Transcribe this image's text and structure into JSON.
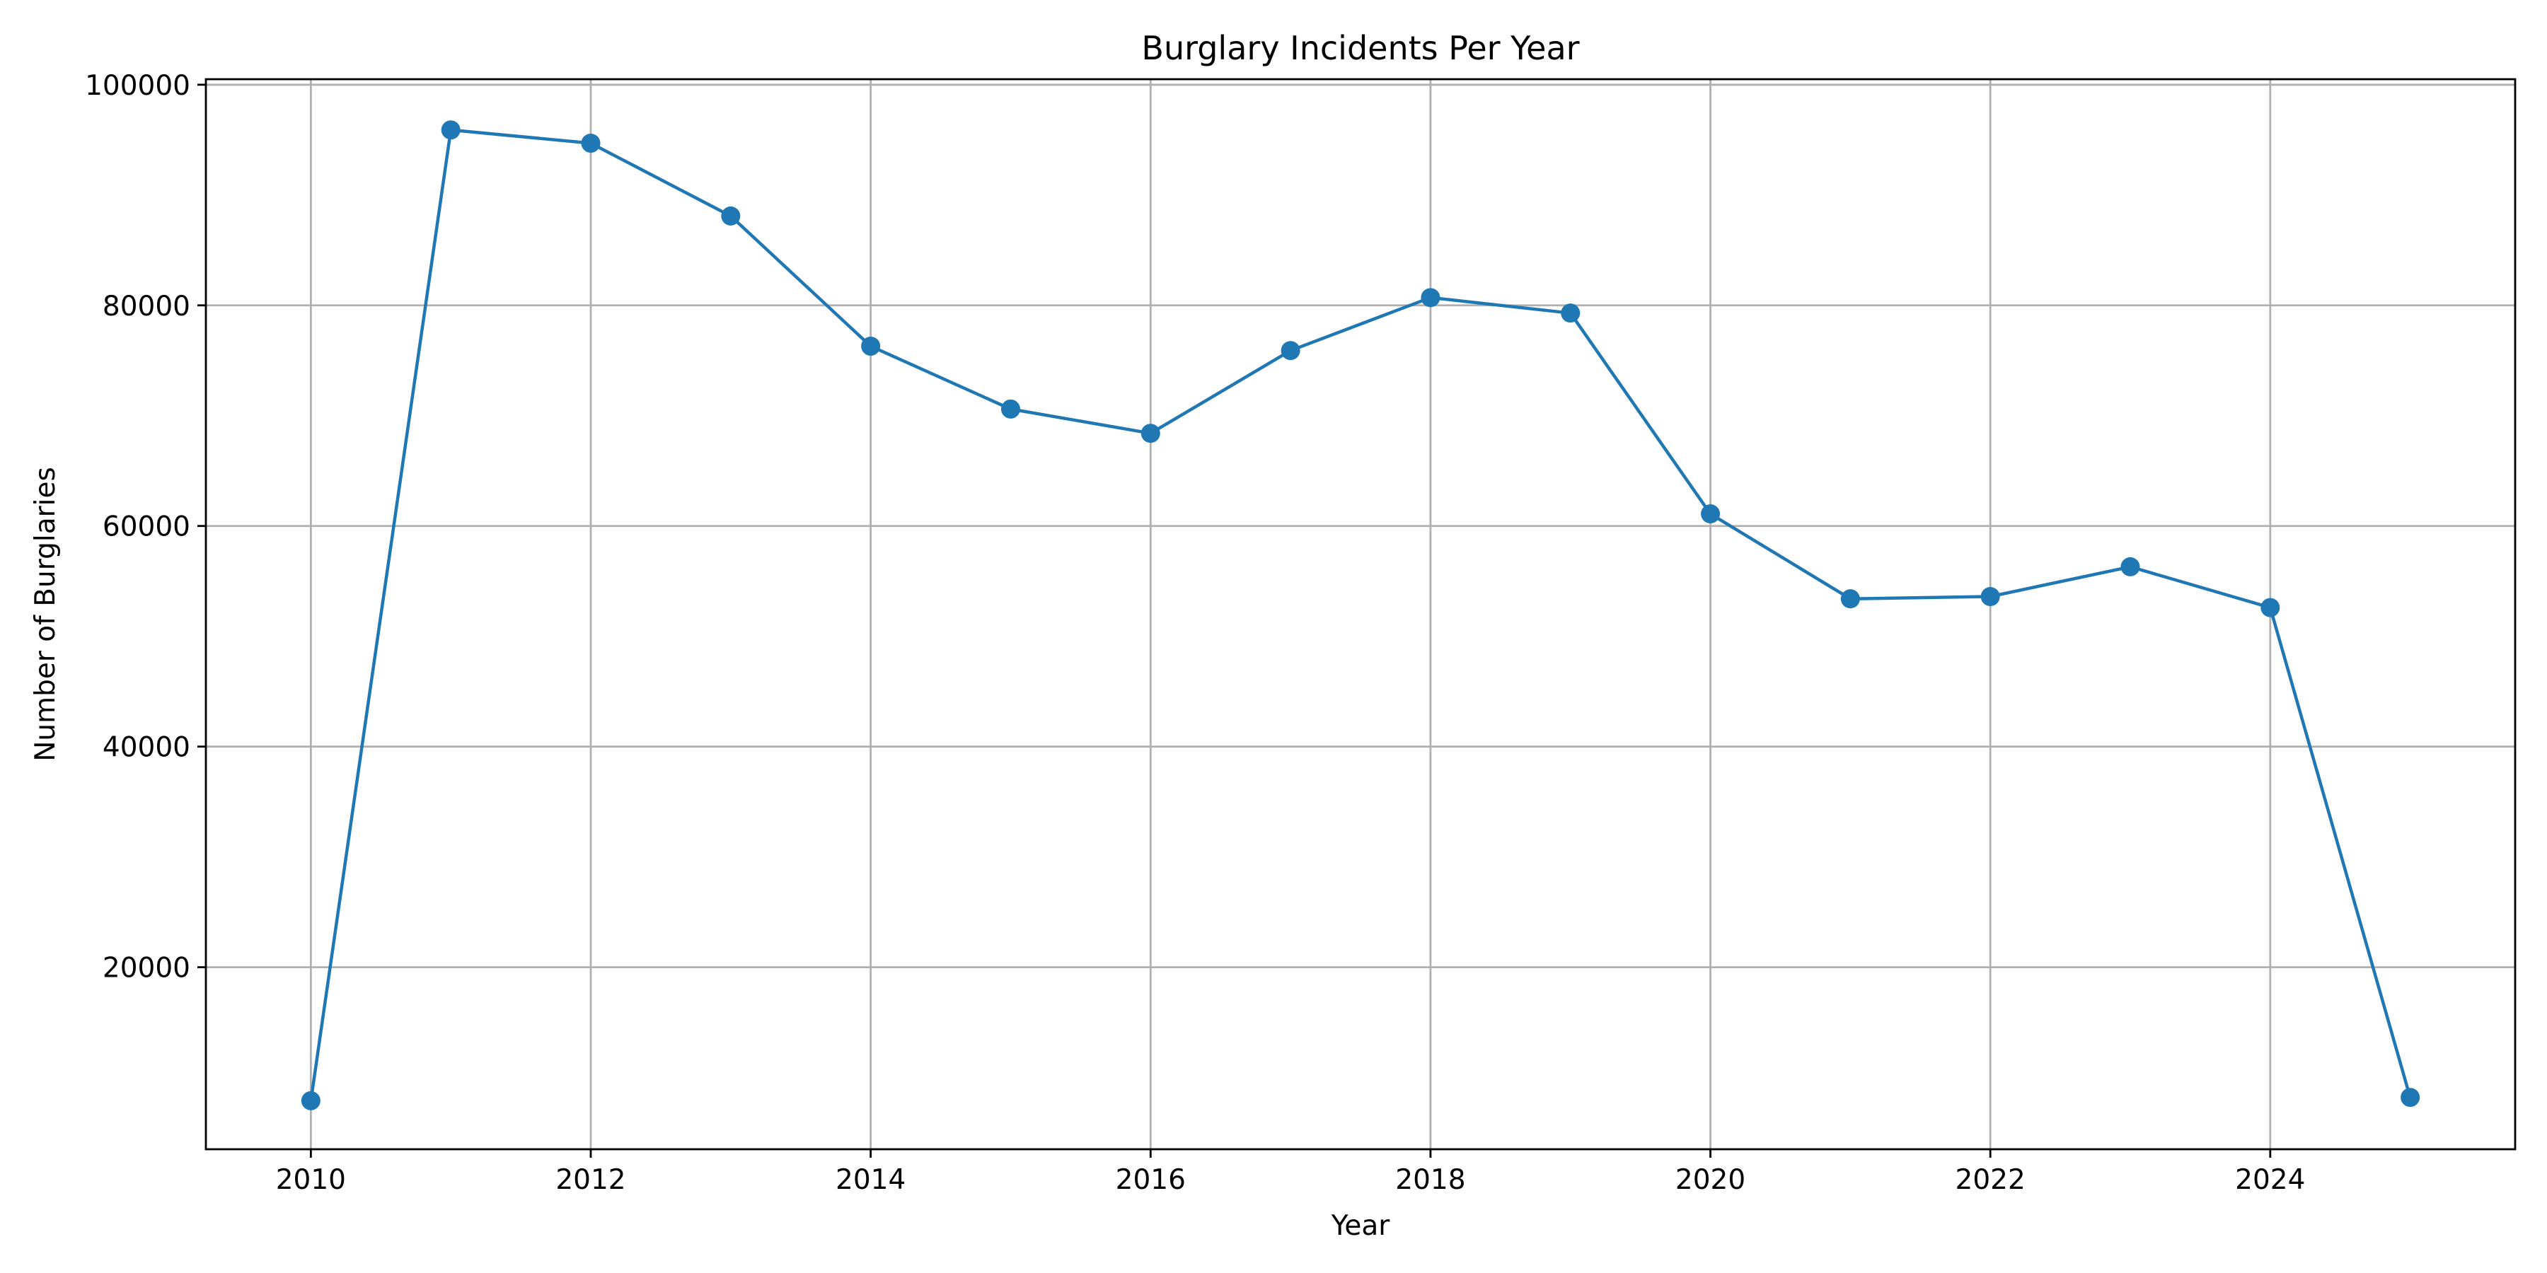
{
  "chart_data": {
    "type": "line",
    "title": "Burglary Incidents Per Year",
    "xlabel": "Year",
    "ylabel": "Number of Burglaries",
    "xlim": [
      2009.25,
      2025.75
    ],
    "ylim": [
      3500,
      100500
    ],
    "x_ticks": [
      2010,
      2012,
      2014,
      2016,
      2018,
      2020,
      2022,
      2024
    ],
    "y_ticks": [
      20000,
      40000,
      60000,
      80000,
      100000
    ],
    "grid": true,
    "legend": "none",
    "series": [
      {
        "color": "#1f77b4",
        "marker": "circle",
        "x": [
          2010,
          2011,
          2012,
          2013,
          2014,
          2015,
          2016,
          2017,
          2018,
          2019,
          2020,
          2021,
          2022,
          2023,
          2024,
          2025
        ],
        "y": [
          7900,
          95900,
          94700,
          88100,
          76300,
          70600,
          68400,
          75900,
          80700,
          79300,
          61100,
          53400,
          53600,
          56300,
          52600,
          8200
        ]
      }
    ]
  }
}
